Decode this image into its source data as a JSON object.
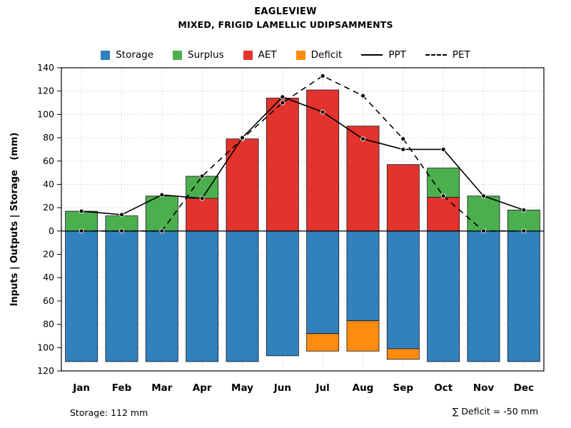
{
  "header": {
    "title": "EAGLEVIEW",
    "subtitle": "MIXED, FRIGID LAMELLIC UDIPSAMMENTS"
  },
  "legend": {
    "storage": "Storage",
    "surplus": "Surplus",
    "aet": "AET",
    "deficit": "Deficit",
    "ppt": "PPT",
    "pet": "PET"
  },
  "annotations": {
    "storage_total": "Storage: 112 mm",
    "deficit_total": "∑ Deficit = -50 mm"
  },
  "chart_data": {
    "type": "bar",
    "title": "EAGLEVIEW",
    "subtitle": "MIXED, FRIGID LAMELLIC UDIPSAMMENTS",
    "ylabel": "Inputs | Outputs | Storage   (mm)",
    "units": "mm",
    "categories": [
      "Jan",
      "Feb",
      "Mar",
      "Apr",
      "May",
      "Jun",
      "Jul",
      "Aug",
      "Sep",
      "Oct",
      "Nov",
      "Dec"
    ],
    "axis": {
      "up_max": 140,
      "down_max": 120,
      "step": 20
    },
    "grid": true,
    "legend_position": "top",
    "series": [
      {
        "name": "Storage",
        "kind": "bar-down",
        "color": "#3181BD",
        "values": [
          112,
          112,
          112,
          112,
          112,
          107,
          88,
          77,
          101,
          112,
          112,
          112
        ]
      },
      {
        "name": "Surplus",
        "kind": "bar-up-stack",
        "color": "#4CAF4E",
        "values": [
          17,
          13,
          30,
          19,
          0,
          0,
          0,
          0,
          0,
          25,
          30,
          18
        ]
      },
      {
        "name": "AET",
        "kind": "bar-up",
        "color": "#E2332C",
        "values": [
          0,
          0,
          0,
          28,
          79,
          114,
          121,
          90,
          57,
          29,
          0,
          0
        ]
      },
      {
        "name": "Deficit",
        "kind": "bar-down-stack",
        "color": "#FF8C0E",
        "values": [
          0,
          0,
          0,
          0,
          0,
          0,
          15,
          26,
          9,
          0,
          0,
          0
        ]
      },
      {
        "name": "PPT",
        "kind": "line-solid",
        "color": "#000000",
        "values": [
          17,
          14,
          31,
          28,
          80,
          115,
          102,
          79,
          70,
          70,
          30,
          18
        ]
      },
      {
        "name": "PET",
        "kind": "line-dashed",
        "color": "#000000",
        "values": [
          0,
          0,
          0,
          47,
          79,
          110,
          133,
          116,
          79,
          30,
          0,
          0
        ]
      }
    ]
  }
}
